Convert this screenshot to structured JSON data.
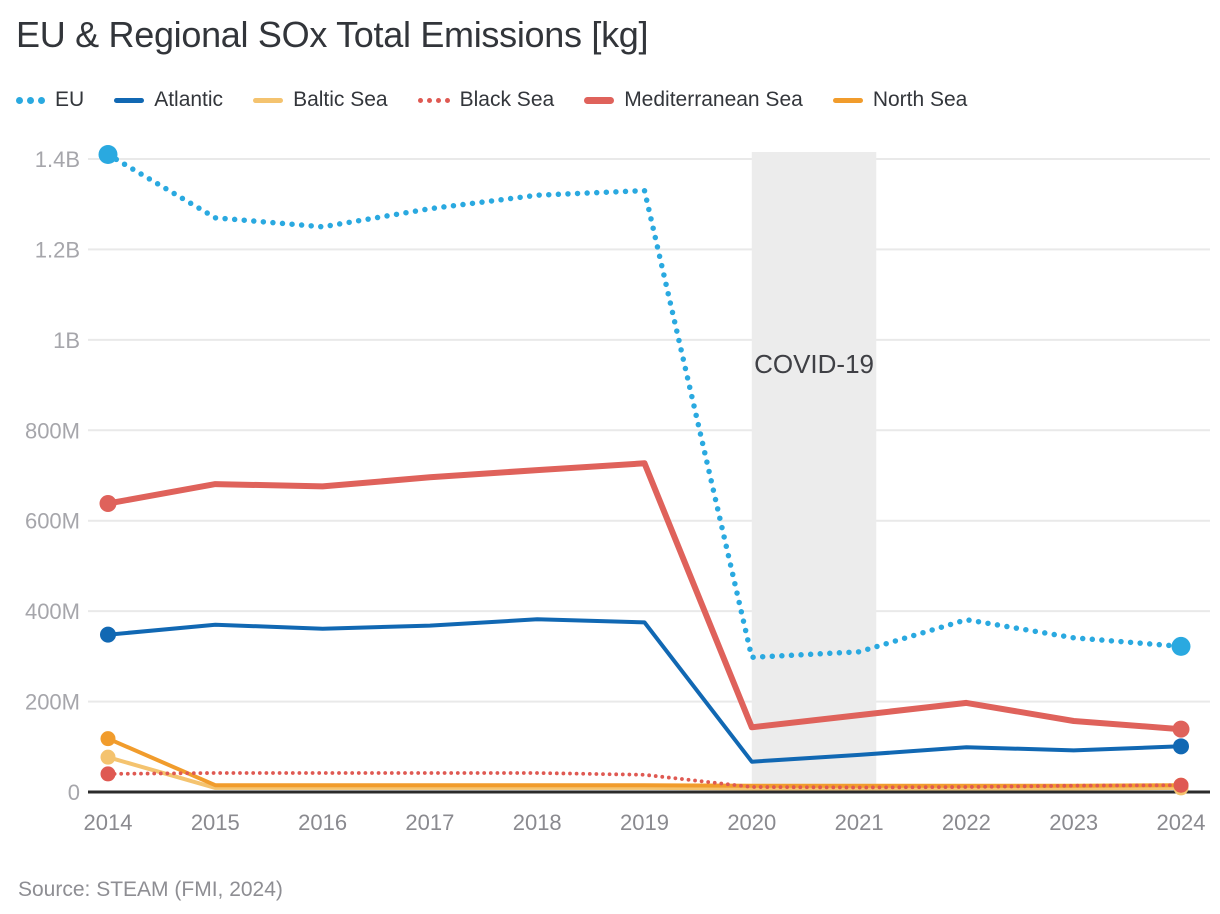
{
  "title": "EU & Regional SOx Total Emissions [kg]",
  "source": "Source: STEAM (FMI, 2024)",
  "covid_annotation": {
    "label": "COVID-19",
    "x_start": 2020,
    "x_end": 2021.16
  },
  "chart_data": {
    "type": "line",
    "title": "EU & Regional SOx Total Emissions [kg]",
    "x": [
      2014,
      2015,
      2016,
      2017,
      2018,
      2019,
      2020,
      2021,
      2022,
      2023,
      2024
    ],
    "x_tick_labels": [
      "2014",
      "2015",
      "2016",
      "2017",
      "2018",
      "2019",
      "2020",
      "2021",
      "2022",
      "2023",
      "2024"
    ],
    "unit": "kg",
    "values_unit": "millions of kg",
    "ylim_millions": [
      0,
      1415
    ],
    "grid": true,
    "legend_position": "top",
    "annotation_note": "Shaded COVID-19 band spans 2020 to just past 2021",
    "yticks": [
      {
        "v": 0,
        "label": "0"
      },
      {
        "v": 200,
        "label": "200M"
      },
      {
        "v": 400,
        "label": "400M"
      },
      {
        "v": 600,
        "label": "600M"
      },
      {
        "v": 800,
        "label": "800M"
      },
      {
        "v": 1000,
        "label": "1B"
      },
      {
        "v": 1200,
        "label": "1.2B"
      },
      {
        "v": 1400,
        "label": "1.4B"
      }
    ],
    "series": [
      {
        "name": "EU",
        "color": "#2aa9e0",
        "style": "dotted",
        "width": 5.5,
        "marker_r": 9.5,
        "values": [
          1410,
          1270,
          1250,
          1290,
          1320,
          1330,
          298,
          310,
          381,
          341,
          322
        ]
      },
      {
        "name": "Atlantic",
        "color": "#1168b3",
        "style": "solid",
        "width": 4,
        "marker_r": 8,
        "values": [
          348,
          370,
          361,
          368,
          382,
          375,
          67,
          82,
          99,
          92,
          101
        ]
      },
      {
        "name": "Baltic Sea",
        "color": "#f4c36f",
        "style": "solid",
        "width": 4,
        "marker_r": 7.5,
        "values": [
          77,
          9,
          9,
          9,
          9,
          9,
          8,
          8,
          8,
          8,
          9
        ]
      },
      {
        "name": "Black Sea",
        "color": "#df5952",
        "style": "dotted",
        "width": 3.8,
        "marker_r": 7.5,
        "values": [
          40,
          42,
          42,
          42,
          42,
          38,
          11,
          10,
          11,
          14,
          15
        ]
      },
      {
        "name": "Mediterranean Sea",
        "color": "#df625b",
        "style": "solid",
        "width": 6,
        "marker_r": 8.5,
        "values": [
          638,
          681,
          676,
          696,
          712,
          727,
          143,
          170,
          197,
          157,
          139
        ]
      },
      {
        "name": "North Sea",
        "color": "#f19c2c",
        "style": "solid",
        "width": 4,
        "marker_r": 7.5,
        "values": [
          118,
          15,
          15,
          15,
          15,
          15,
          14,
          14,
          14,
          14,
          15
        ]
      }
    ]
  },
  "styles": {
    "grid_color": "#e9e9e9",
    "axis_color": "#2b2b2b",
    "band_color": "#ececec",
    "band_text_color": "#3f4045",
    "ytick_color": "#a6a6ab",
    "xtick_color": "#8a8a8f"
  }
}
